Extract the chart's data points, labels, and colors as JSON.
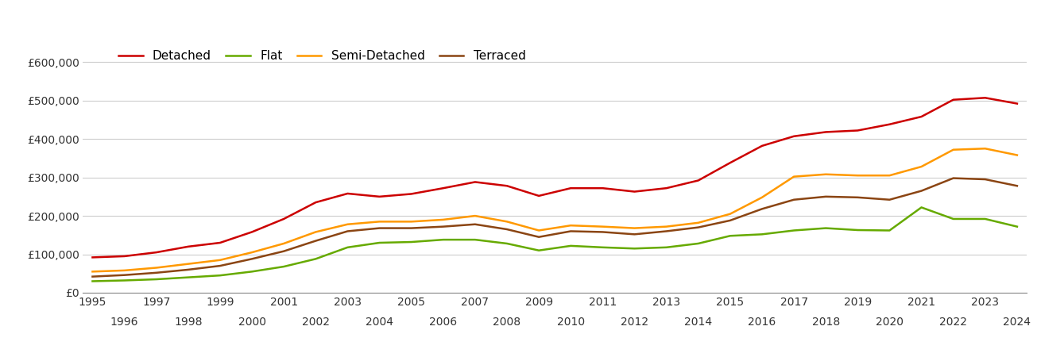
{
  "years": [
    1995,
    1996,
    1997,
    1998,
    1999,
    2000,
    2001,
    2002,
    2003,
    2004,
    2005,
    2006,
    2007,
    2008,
    2009,
    2010,
    2011,
    2012,
    2013,
    2014,
    2015,
    2016,
    2017,
    2018,
    2019,
    2020,
    2021,
    2022,
    2023,
    2024
  ],
  "detached": [
    92000,
    95000,
    105000,
    120000,
    130000,
    158000,
    192000,
    235000,
    258000,
    250000,
    257000,
    272000,
    288000,
    278000,
    252000,
    272000,
    272000,
    263000,
    272000,
    292000,
    338000,
    382000,
    407000,
    418000,
    422000,
    438000,
    458000,
    502000,
    507000,
    492000
  ],
  "flat": [
    30000,
    32000,
    35000,
    40000,
    45000,
    55000,
    68000,
    88000,
    118000,
    130000,
    132000,
    138000,
    138000,
    128000,
    110000,
    122000,
    118000,
    115000,
    118000,
    128000,
    148000,
    152000,
    162000,
    168000,
    163000,
    162000,
    222000,
    192000,
    192000,
    172000
  ],
  "semi_detached": [
    55000,
    58000,
    65000,
    75000,
    85000,
    105000,
    128000,
    158000,
    178000,
    185000,
    185000,
    190000,
    200000,
    185000,
    162000,
    175000,
    172000,
    168000,
    172000,
    182000,
    205000,
    248000,
    302000,
    308000,
    305000,
    305000,
    328000,
    372000,
    375000,
    358000
  ],
  "terraced": [
    42000,
    46000,
    52000,
    60000,
    70000,
    88000,
    108000,
    135000,
    160000,
    168000,
    168000,
    172000,
    178000,
    165000,
    145000,
    160000,
    158000,
    152000,
    160000,
    170000,
    188000,
    218000,
    242000,
    250000,
    248000,
    242000,
    265000,
    298000,
    295000,
    278000
  ],
  "colors": {
    "detached": "#cc0000",
    "flat": "#66aa00",
    "semi_detached": "#ff9900",
    "terraced": "#8b4513"
  },
  "legend_labels": [
    "Detached",
    "Flat",
    "Semi-Detached",
    "Terraced"
  ],
  "ylim": [
    0,
    650000
  ],
  "yticks": [
    0,
    100000,
    200000,
    300000,
    400000,
    500000,
    600000
  ],
  "bg_color": "#ffffff",
  "grid_color": "#cccccc",
  "linewidth": 1.8,
  "odd_years": [
    1995,
    1997,
    1999,
    2001,
    2003,
    2005,
    2007,
    2009,
    2011,
    2013,
    2015,
    2017,
    2019,
    2021,
    2023
  ],
  "even_years": [
    1996,
    1998,
    2000,
    2002,
    2004,
    2006,
    2008,
    2010,
    2012,
    2014,
    2016,
    2018,
    2020,
    2022,
    2024
  ]
}
